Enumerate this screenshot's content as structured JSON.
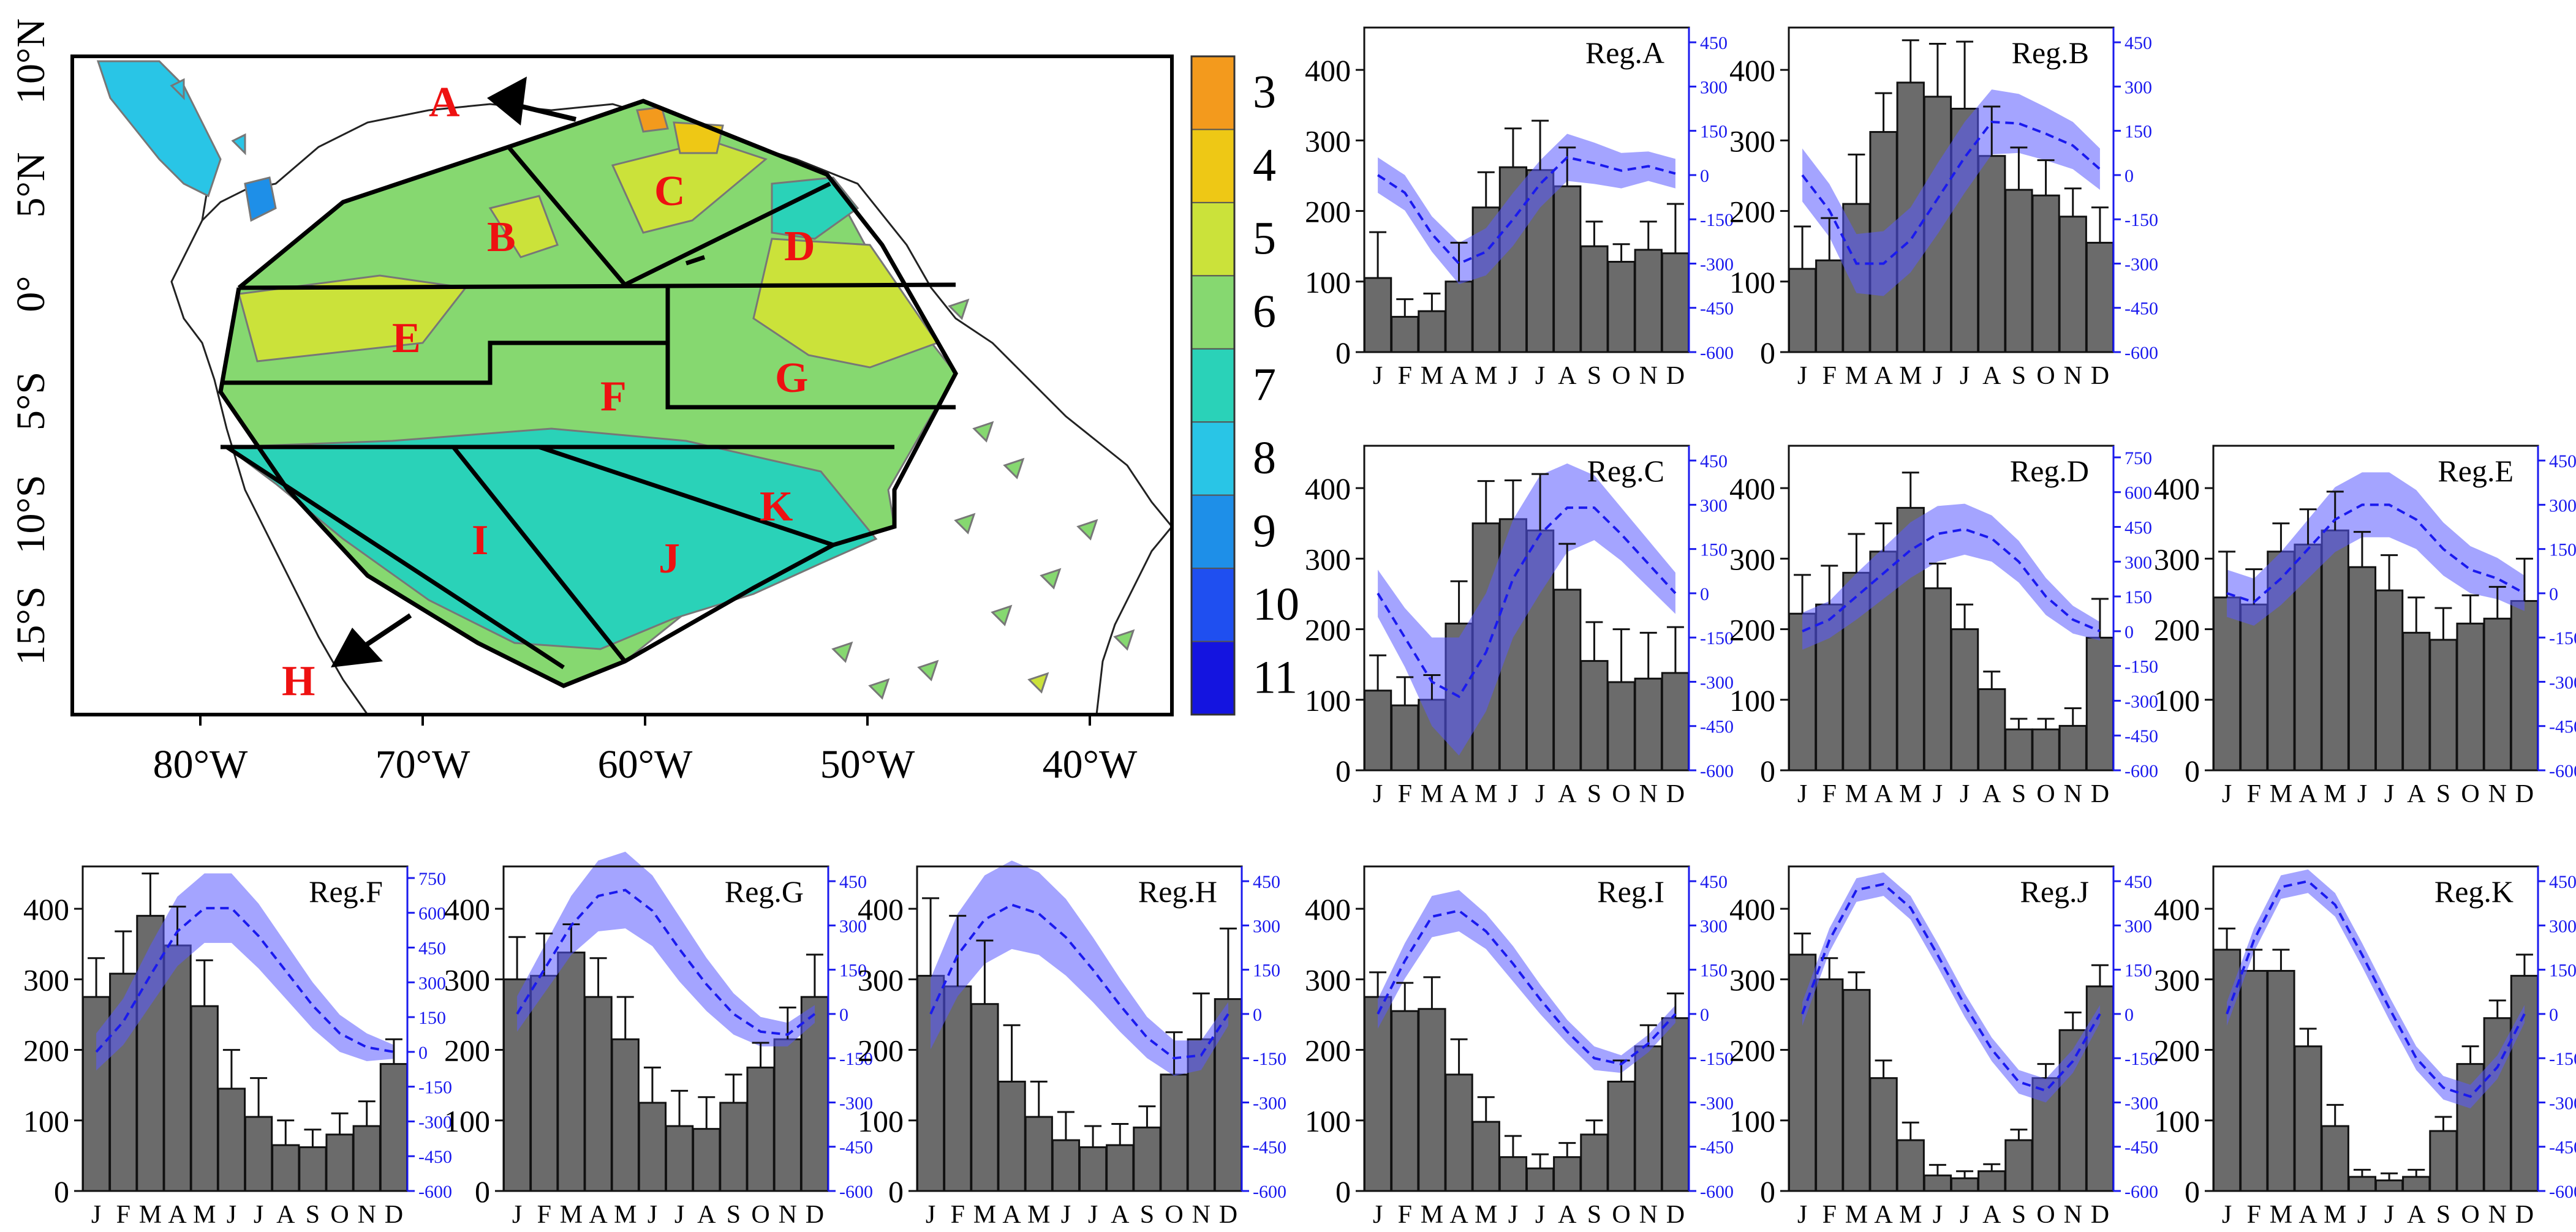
{
  "map": {
    "lon_ticks": [
      "80°W",
      "70°W",
      "60°W",
      "50°W",
      "40°W"
    ],
    "lat_ticks": [
      "10°N",
      "5°N",
      "0°",
      "5°S",
      "10°S",
      "15°S"
    ],
    "colorbar": {
      "labels": [
        "3",
        "4",
        "5",
        "6",
        "7",
        "8",
        "9",
        "10",
        "11"
      ],
      "colors": [
        "#f39a1d",
        "#eec815",
        "#cbe23a",
        "#86d870",
        "#2ad2b8",
        "#29c5e6",
        "#1e8fe8",
        "#1f4ff0",
        "#1414e0"
      ]
    },
    "region_labels": [
      "A",
      "B",
      "C",
      "D",
      "E",
      "F",
      "G",
      "H",
      "I",
      "J",
      "K"
    ]
  },
  "chart_data": [
    {
      "type": "bar+line",
      "title": "Reg.A",
      "categories": [
        "J",
        "F",
        "M",
        "A",
        "M",
        "J",
        "J",
        "A",
        "S",
        "O",
        "N",
        "D"
      ],
      "values": [
        105,
        50,
        58,
        100,
        205,
        262,
        258,
        235,
        150,
        128,
        145,
        140
      ],
      "errors": [
        65,
        25,
        25,
        55,
        50,
        55,
        70,
        55,
        35,
        25,
        40,
        70
      ],
      "line": [
        0,
        -60,
        -200,
        -300,
        -260,
        -150,
        -30,
        60,
        40,
        15,
        30,
        5
      ],
      "line_band": [
        60,
        60,
        60,
        70,
        80,
        90,
        80,
        80,
        70,
        60,
        50,
        50
      ],
      "ylim": [
        0,
        460
      ],
      "y_ticks": [
        0,
        100,
        200,
        300,
        400
      ],
      "y2lim": [
        -600,
        500
      ],
      "y2_ticks": [
        -600,
        -450,
        -300,
        -150,
        0,
        150,
        300,
        450
      ]
    },
    {
      "type": "bar+line",
      "title": "Reg.B",
      "categories": [
        "J",
        "F",
        "M",
        "A",
        "M",
        "J",
        "J",
        "A",
        "S",
        "O",
        "N",
        "D"
      ],
      "values": [
        118,
        130,
        210,
        312,
        382,
        362,
        345,
        278,
        230,
        222,
        192,
        155
      ],
      "errors": [
        60,
        60,
        70,
        55,
        60,
        75,
        95,
        70,
        60,
        50,
        40,
        50
      ],
      "line": [
        0,
        -120,
        -300,
        -300,
        -220,
        -80,
        60,
        180,
        175,
        140,
        100,
        20
      ],
      "line_band": [
        90,
        90,
        100,
        110,
        110,
        120,
        120,
        110,
        100,
        90,
        80,
        70
      ],
      "ylim": [
        0,
        460
      ],
      "y_ticks": [
        0,
        100,
        200,
        300,
        400
      ],
      "y2lim": [
        -600,
        500
      ],
      "y2_ticks": [
        -600,
        -450,
        -300,
        -150,
        0,
        150,
        300,
        450
      ]
    },
    {
      "type": "bar+line",
      "title": "Reg.C",
      "categories": [
        "J",
        "F",
        "M",
        "A",
        "M",
        "J",
        "J",
        "A",
        "S",
        "O",
        "N",
        "D"
      ],
      "values": [
        113,
        92,
        100,
        208,
        350,
        356,
        340,
        256,
        155,
        125,
        130,
        138
      ],
      "errors": [
        50,
        40,
        35,
        60,
        60,
        55,
        80,
        65,
        55,
        75,
        65,
        65
      ],
      "line": [
        0,
        -150,
        -300,
        -350,
        -200,
        50,
        200,
        290,
        290,
        200,
        100,
        0
      ],
      "line_band": [
        80,
        100,
        150,
        200,
        200,
        200,
        200,
        150,
        110,
        90,
        80,
        70
      ],
      "ylim": [
        0,
        460
      ],
      "y_ticks": [
        0,
        100,
        200,
        300,
        400
      ],
      "y2lim": [
        -600,
        500
      ],
      "y2_ticks": [
        -600,
        -450,
        -300,
        -150,
        0,
        150,
        300,
        450
      ]
    },
    {
      "type": "bar+line",
      "title": "Reg.D",
      "categories": [
        "J",
        "F",
        "M",
        "A",
        "M",
        "J",
        "J",
        "A",
        "S",
        "O",
        "N",
        "D"
      ],
      "values": [
        222,
        235,
        280,
        310,
        372,
        258,
        200,
        115,
        58,
        58,
        63,
        188
      ],
      "errors": [
        55,
        55,
        55,
        40,
        50,
        35,
        35,
        25,
        15,
        15,
        25,
        55
      ],
      "line": [
        0,
        50,
        150,
        250,
        350,
        420,
        440,
        400,
        300,
        150,
        50,
        0
      ],
      "line_band": [
        80,
        80,
        100,
        110,
        120,
        120,
        110,
        100,
        90,
        80,
        60,
        40
      ],
      "ylim": [
        0,
        460
      ],
      "y_ticks": [
        0,
        100,
        200,
        300,
        400
      ],
      "y2lim": [
        -600,
        800
      ],
      "y2_ticks": [
        -600,
        -450,
        -300,
        -150,
        0,
        150,
        300,
        450,
        600,
        750
      ]
    },
    {
      "type": "bar+line",
      "title": "Reg.E",
      "categories": [
        "J",
        "F",
        "M",
        "A",
        "M",
        "J",
        "J",
        "A",
        "S",
        "O",
        "N",
        "D"
      ],
      "values": [
        245,
        235,
        310,
        320,
        340,
        288,
        255,
        195,
        185,
        208,
        215,
        240
      ],
      "errors": [
        65,
        50,
        40,
        50,
        55,
        50,
        50,
        50,
        45,
        40,
        45,
        60
      ],
      "line": [
        0,
        -30,
        50,
        150,
        250,
        300,
        300,
        250,
        150,
        80,
        50,
        0
      ],
      "line_band": [
        80,
        80,
        90,
        100,
        110,
        110,
        110,
        100,
        90,
        80,
        70,
        60
      ],
      "ylim": [
        0,
        460
      ],
      "y_ticks": [
        0,
        100,
        200,
        300,
        400
      ],
      "y2lim": [
        -600,
        500
      ],
      "y2_ticks": [
        -600,
        -450,
        -300,
        -150,
        0,
        150,
        300,
        450
      ]
    },
    {
      "type": "bar+line",
      "title": "Reg.F",
      "categories": [
        "J",
        "F",
        "M",
        "A",
        "M",
        "J",
        "J",
        "A",
        "S",
        "O",
        "N",
        "D"
      ],
      "values": [
        275,
        308,
        390,
        348,
        262,
        145,
        105,
        65,
        62,
        80,
        92,
        180
      ],
      "errors": [
        55,
        60,
        60,
        55,
        65,
        55,
        55,
        35,
        25,
        30,
        35,
        35
      ],
      "line": [
        0,
        130,
        330,
        520,
        620,
        620,
        500,
        350,
        200,
        80,
        20,
        0
      ],
      "line_band": [
        80,
        100,
        130,
        150,
        150,
        150,
        140,
        120,
        100,
        80,
        60,
        30
      ],
      "ylim": [
        0,
        460
      ],
      "y_ticks": [
        0,
        100,
        200,
        300,
        400
      ],
      "y2lim": [
        -600,
        800
      ],
      "y2_ticks": [
        -600,
        -450,
        -300,
        -150,
        0,
        150,
        300,
        450,
        600,
        750
      ]
    },
    {
      "type": "bar+line",
      "title": "Reg.G",
      "categories": [
        "J",
        "F",
        "M",
        "A",
        "M",
        "J",
        "J",
        "A",
        "S",
        "O",
        "N",
        "D"
      ],
      "values": [
        300,
        305,
        338,
        275,
        215,
        125,
        92,
        88,
        125,
        175,
        215,
        275
      ],
      "errors": [
        60,
        60,
        40,
        55,
        60,
        50,
        50,
        45,
        40,
        35,
        45,
        60
      ],
      "line": [
        0,
        150,
        300,
        400,
        420,
        350,
        220,
        100,
        0,
        -60,
        -70,
        0
      ],
      "line_band": [
        60,
        80,
        100,
        120,
        130,
        120,
        110,
        90,
        70,
        50,
        40,
        30
      ],
      "ylim": [
        0,
        460
      ],
      "y_ticks": [
        0,
        100,
        200,
        300,
        400
      ],
      "y2lim": [
        -600,
        500
      ],
      "y2_ticks": [
        -600,
        -450,
        -300,
        -150,
        0,
        150,
        300,
        450
      ]
    },
    {
      "type": "bar+line",
      "title": "Reg.H",
      "categories": [
        "J",
        "F",
        "M",
        "A",
        "M",
        "J",
        "J",
        "A",
        "S",
        "O",
        "N",
        "D"
      ],
      "values": [
        305,
        290,
        265,
        155,
        105,
        72,
        62,
        65,
        90,
        165,
        215,
        272
      ],
      "errors": [
        110,
        100,
        90,
        80,
        50,
        40,
        30,
        30,
        30,
        60,
        65,
        100
      ],
      "line": [
        0,
        200,
        320,
        370,
        340,
        260,
        150,
        30,
        -80,
        -150,
        -140,
        0
      ],
      "line_band": [
        120,
        140,
        150,
        150,
        140,
        130,
        110,
        90,
        70,
        60,
        50,
        40
      ],
      "ylim": [
        0,
        460
      ],
      "y_ticks": [
        0,
        100,
        200,
        300,
        400
      ],
      "y2lim": [
        -600,
        500
      ],
      "y2_ticks": [
        -600,
        -450,
        -300,
        -150,
        0,
        150,
        300,
        450
      ]
    },
    {
      "type": "bar+line",
      "title": "Reg.I",
      "categories": [
        "J",
        "F",
        "M",
        "A",
        "M",
        "J",
        "J",
        "A",
        "S",
        "O",
        "N",
        "D"
      ],
      "values": [
        275,
        255,
        258,
        165,
        98,
        48,
        32,
        48,
        80,
        155,
        205,
        245
      ],
      "errors": [
        35,
        40,
        45,
        50,
        35,
        30,
        20,
        20,
        20,
        30,
        30,
        35
      ],
      "line": [
        0,
        180,
        330,
        350,
        280,
        170,
        50,
        -60,
        -150,
        -170,
        -100,
        0
      ],
      "line_band": [
        50,
        60,
        70,
        70,
        60,
        60,
        50,
        40,
        40,
        30,
        30,
        30
      ],
      "ylim": [
        0,
        460
      ],
      "y_ticks": [
        0,
        100,
        200,
        300,
        400
      ],
      "y2lim": [
        -600,
        500
      ],
      "y2_ticks": [
        -600,
        -450,
        -300,
        -150,
        0,
        150,
        300,
        450
      ]
    },
    {
      "type": "bar+line",
      "title": "Reg.J",
      "categories": [
        "J",
        "F",
        "M",
        "A",
        "M",
        "J",
        "J",
        "A",
        "S",
        "O",
        "N",
        "D"
      ],
      "values": [
        335,
        300,
        285,
        160,
        72,
        22,
        18,
        28,
        72,
        160,
        228,
        290
      ],
      "errors": [
        30,
        30,
        25,
        25,
        25,
        15,
        10,
        10,
        15,
        20,
        25,
        30
      ],
      "line": [
        0,
        250,
        420,
        440,
        360,
        200,
        30,
        -120,
        -230,
        -260,
        -160,
        0
      ],
      "line_band": [
        40,
        40,
        40,
        40,
        40,
        40,
        40,
        40,
        40,
        40,
        40,
        30
      ],
      "ylim": [
        0,
        460
      ],
      "y_ticks": [
        0,
        100,
        200,
        300,
        400
      ],
      "y2lim": [
        -600,
        500
      ],
      "y2_ticks": [
        -600,
        -450,
        -300,
        -150,
        0,
        150,
        300,
        450
      ]
    },
    {
      "type": "bar+line",
      "title": "Reg.K",
      "categories": [
        "J",
        "F",
        "M",
        "A",
        "M",
        "J",
        "J",
        "A",
        "S",
        "O",
        "N",
        "D"
      ],
      "values": [
        342,
        312,
        312,
        205,
        92,
        20,
        15,
        20,
        85,
        180,
        245,
        305
      ],
      "errors": [
        30,
        30,
        30,
        25,
        30,
        10,
        10,
        10,
        20,
        25,
        25,
        30
      ],
      "line": [
        0,
        250,
        430,
        450,
        370,
        200,
        20,
        -150,
        -250,
        -280,
        -180,
        0
      ],
      "line_band": [
        40,
        40,
        40,
        40,
        40,
        40,
        40,
        40,
        40,
        40,
        40,
        30
      ],
      "ylim": [
        0,
        460
      ],
      "y_ticks": [
        0,
        100,
        200,
        300,
        400
      ],
      "y2lim": [
        -600,
        500
      ],
      "y2_ticks": [
        -600,
        -450,
        -300,
        -150,
        0,
        150,
        300,
        450
      ]
    }
  ]
}
